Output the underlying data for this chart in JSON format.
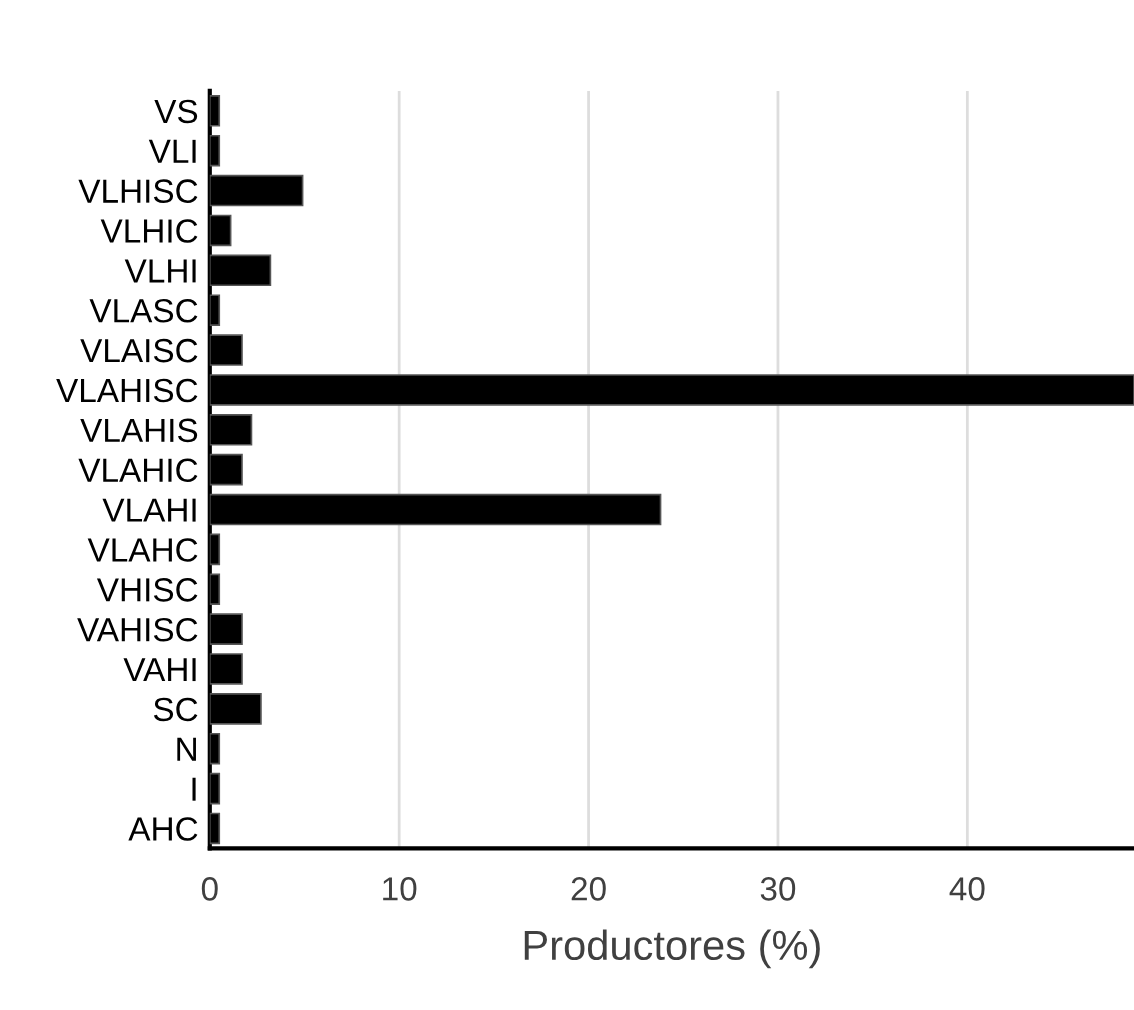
{
  "chart_data": {
    "type": "bar",
    "orientation": "horizontal",
    "xlabel": "Productores (%)",
    "categories": [
      "VS",
      "VLI",
      "VLHISC",
      "VLHIC",
      "VLHI",
      "VLASC",
      "VLAISC",
      "VLAHISC",
      "VLAHIS",
      "VLAHIC",
      "VLAHI",
      "VLAHC",
      "VHISC",
      "VAHISC",
      "VAHI",
      "SC",
      "N",
      "I",
      "AHC"
    ],
    "values": [
      0.5,
      0.5,
      4.9,
      1.1,
      3.2,
      0.5,
      1.7,
      48.8,
      2.2,
      1.7,
      23.8,
      0.5,
      0.5,
      1.7,
      1.7,
      2.7,
      0.5,
      0.5,
      0.5
    ],
    "color": "#000000",
    "xlim": [
      0,
      48.8
    ],
    "xticks": [
      0,
      10,
      20,
      30,
      40
    ],
    "grid": "x"
  }
}
